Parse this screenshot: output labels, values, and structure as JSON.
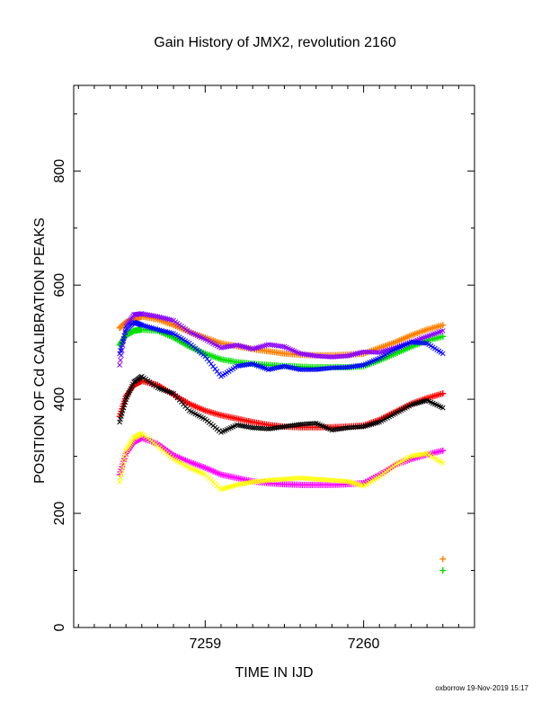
{
  "chart_data": {
    "type": "scatter",
    "title": "Gain History of JMX2, revolution 2160",
    "xlabel": "TIME IN IJD",
    "ylabel": "POSITION OF Cd CALIBRATION PEAKS",
    "xlim": [
      7258.17,
      7260.7
    ],
    "ylim": [
      0,
      950
    ],
    "x_ticks": [
      7259,
      7260
    ],
    "y_ticks": [
      0,
      200,
      400,
      600,
      800
    ],
    "grid": false,
    "legend": "none",
    "footer": "oxborrow 19-Nov-2019 15:17",
    "series": [
      {
        "color": "#ff7f00",
        "marker": "plus",
        "x": [
          7258.46,
          7258.5,
          7258.55,
          7258.6,
          7258.7,
          7258.8,
          7258.9,
          7259.0,
          7259.1,
          7259.2,
          7259.3,
          7259.4,
          7259.5,
          7259.6,
          7259.7,
          7259.8,
          7259.9,
          7260.0,
          7260.1,
          7260.2,
          7260.3,
          7260.4,
          7260.5
        ],
        "y": [
          525,
          535,
          540,
          545,
          540,
          530,
          518,
          508,
          498,
          493,
          488,
          484,
          480,
          478,
          477,
          477,
          478,
          480,
          490,
          500,
          512,
          522,
          530
        ]
      },
      {
        "color": "#00e000",
        "marker": "plus",
        "x": [
          7258.46,
          7258.5,
          7258.55,
          7258.6,
          7258.7,
          7258.8,
          7258.9,
          7259.0,
          7259.1,
          7259.2,
          7259.3,
          7259.4,
          7259.5,
          7259.6,
          7259.7,
          7259.8,
          7259.9,
          7260.0,
          7260.1,
          7260.2,
          7260.3,
          7260.4,
          7260.5
        ],
        "y": [
          495,
          512,
          520,
          522,
          520,
          508,
          492,
          480,
          470,
          465,
          462,
          460,
          458,
          457,
          456,
          456,
          456,
          458,
          468,
          480,
          492,
          503,
          510
        ]
      },
      {
        "color": "#ff0000",
        "marker": "plus",
        "x": [
          7258.46,
          7258.5,
          7258.55,
          7258.6,
          7258.7,
          7258.8,
          7258.9,
          7259.0,
          7259.1,
          7259.2,
          7259.3,
          7259.4,
          7259.5,
          7259.6,
          7259.7,
          7259.8,
          7259.9,
          7260.0,
          7260.1,
          7260.2,
          7260.3,
          7260.4,
          7260.5
        ],
        "y": [
          370,
          405,
          425,
          432,
          425,
          408,
          392,
          380,
          372,
          366,
          360,
          355,
          352,
          351,
          351,
          351,
          352,
          354,
          364,
          378,
          392,
          402,
          410
        ]
      },
      {
        "color": "#ff00ff",
        "marker": "plus",
        "x": [
          7258.46,
          7258.5,
          7258.55,
          7258.6,
          7258.7,
          7258.8,
          7258.9,
          7259.0,
          7259.1,
          7259.2,
          7259.3,
          7259.4,
          7259.5,
          7259.6,
          7259.7,
          7259.8,
          7259.9,
          7260.0,
          7260.1,
          7260.2,
          7260.3,
          7260.4,
          7260.5
        ],
        "y": [
          268,
          305,
          325,
          332,
          322,
          302,
          290,
          280,
          268,
          262,
          256,
          253,
          251,
          250,
          250,
          250,
          251,
          253,
          268,
          285,
          295,
          303,
          310
        ]
      },
      {
        "color": "#8800ff",
        "marker": "cross",
        "x": [
          7258.46,
          7258.5,
          7258.55,
          7258.6,
          7258.7,
          7258.8,
          7258.9,
          7259.0,
          7259.1,
          7259.2,
          7259.3,
          7259.4,
          7259.5,
          7259.6,
          7259.7,
          7259.8,
          7259.9,
          7260.0,
          7260.1,
          7260.2,
          7260.3,
          7260.4,
          7260.5
        ],
        "y": [
          460,
          528,
          548,
          550,
          545,
          538,
          518,
          505,
          490,
          495,
          488,
          496,
          492,
          480,
          476,
          474,
          476,
          483,
          482,
          490,
          500,
          510,
          520
        ]
      },
      {
        "color": "#0000ff",
        "marker": "cross",
        "x": [
          7258.46,
          7258.5,
          7258.55,
          7258.6,
          7258.7,
          7258.8,
          7258.9,
          7259.0,
          7259.1,
          7259.2,
          7259.3,
          7259.4,
          7259.5,
          7259.6,
          7259.7,
          7259.8,
          7259.9,
          7260.0,
          7260.1,
          7260.2,
          7260.3,
          7260.4,
          7260.5
        ],
        "y": [
          480,
          522,
          535,
          530,
          522,
          515,
          498,
          475,
          440,
          458,
          462,
          452,
          458,
          452,
          452,
          455,
          456,
          460,
          472,
          488,
          500,
          498,
          480
        ]
      },
      {
        "color": "#000000",
        "marker": "cross",
        "x": [
          7258.46,
          7258.5,
          7258.55,
          7258.6,
          7258.7,
          7258.8,
          7258.9,
          7259.0,
          7259.1,
          7259.2,
          7259.3,
          7259.4,
          7259.5,
          7259.6,
          7259.7,
          7259.8,
          7259.9,
          7260.0,
          7260.1,
          7260.2,
          7260.3,
          7260.4,
          7260.5
        ],
        "y": [
          360,
          400,
          430,
          440,
          420,
          410,
          380,
          365,
          342,
          355,
          350,
          348,
          352,
          356,
          358,
          346,
          350,
          352,
          360,
          375,
          390,
          398,
          385
        ]
      },
      {
        "color": "#ffff00",
        "marker": "cross",
        "x": [
          7258.46,
          7258.5,
          7258.55,
          7258.6,
          7258.7,
          7258.8,
          7258.9,
          7259.0,
          7259.1,
          7259.2,
          7259.3,
          7259.4,
          7259.5,
          7259.6,
          7259.7,
          7259.8,
          7259.9,
          7260.0,
          7260.1,
          7260.2,
          7260.3,
          7260.4,
          7260.5
        ],
        "y": [
          255,
          310,
          332,
          340,
          318,
          295,
          280,
          268,
          242,
          250,
          255,
          258,
          260,
          262,
          260,
          258,
          256,
          248,
          265,
          285,
          300,
          305,
          288
        ]
      },
      {
        "color": "#ff7f00",
        "marker": "plus",
        "x": [
          7260.5
        ],
        "y": [
          120
        ]
      },
      {
        "color": "#00e000",
        "marker": "plus",
        "x": [
          7260.5
        ],
        "y": [
          100
        ]
      }
    ]
  }
}
